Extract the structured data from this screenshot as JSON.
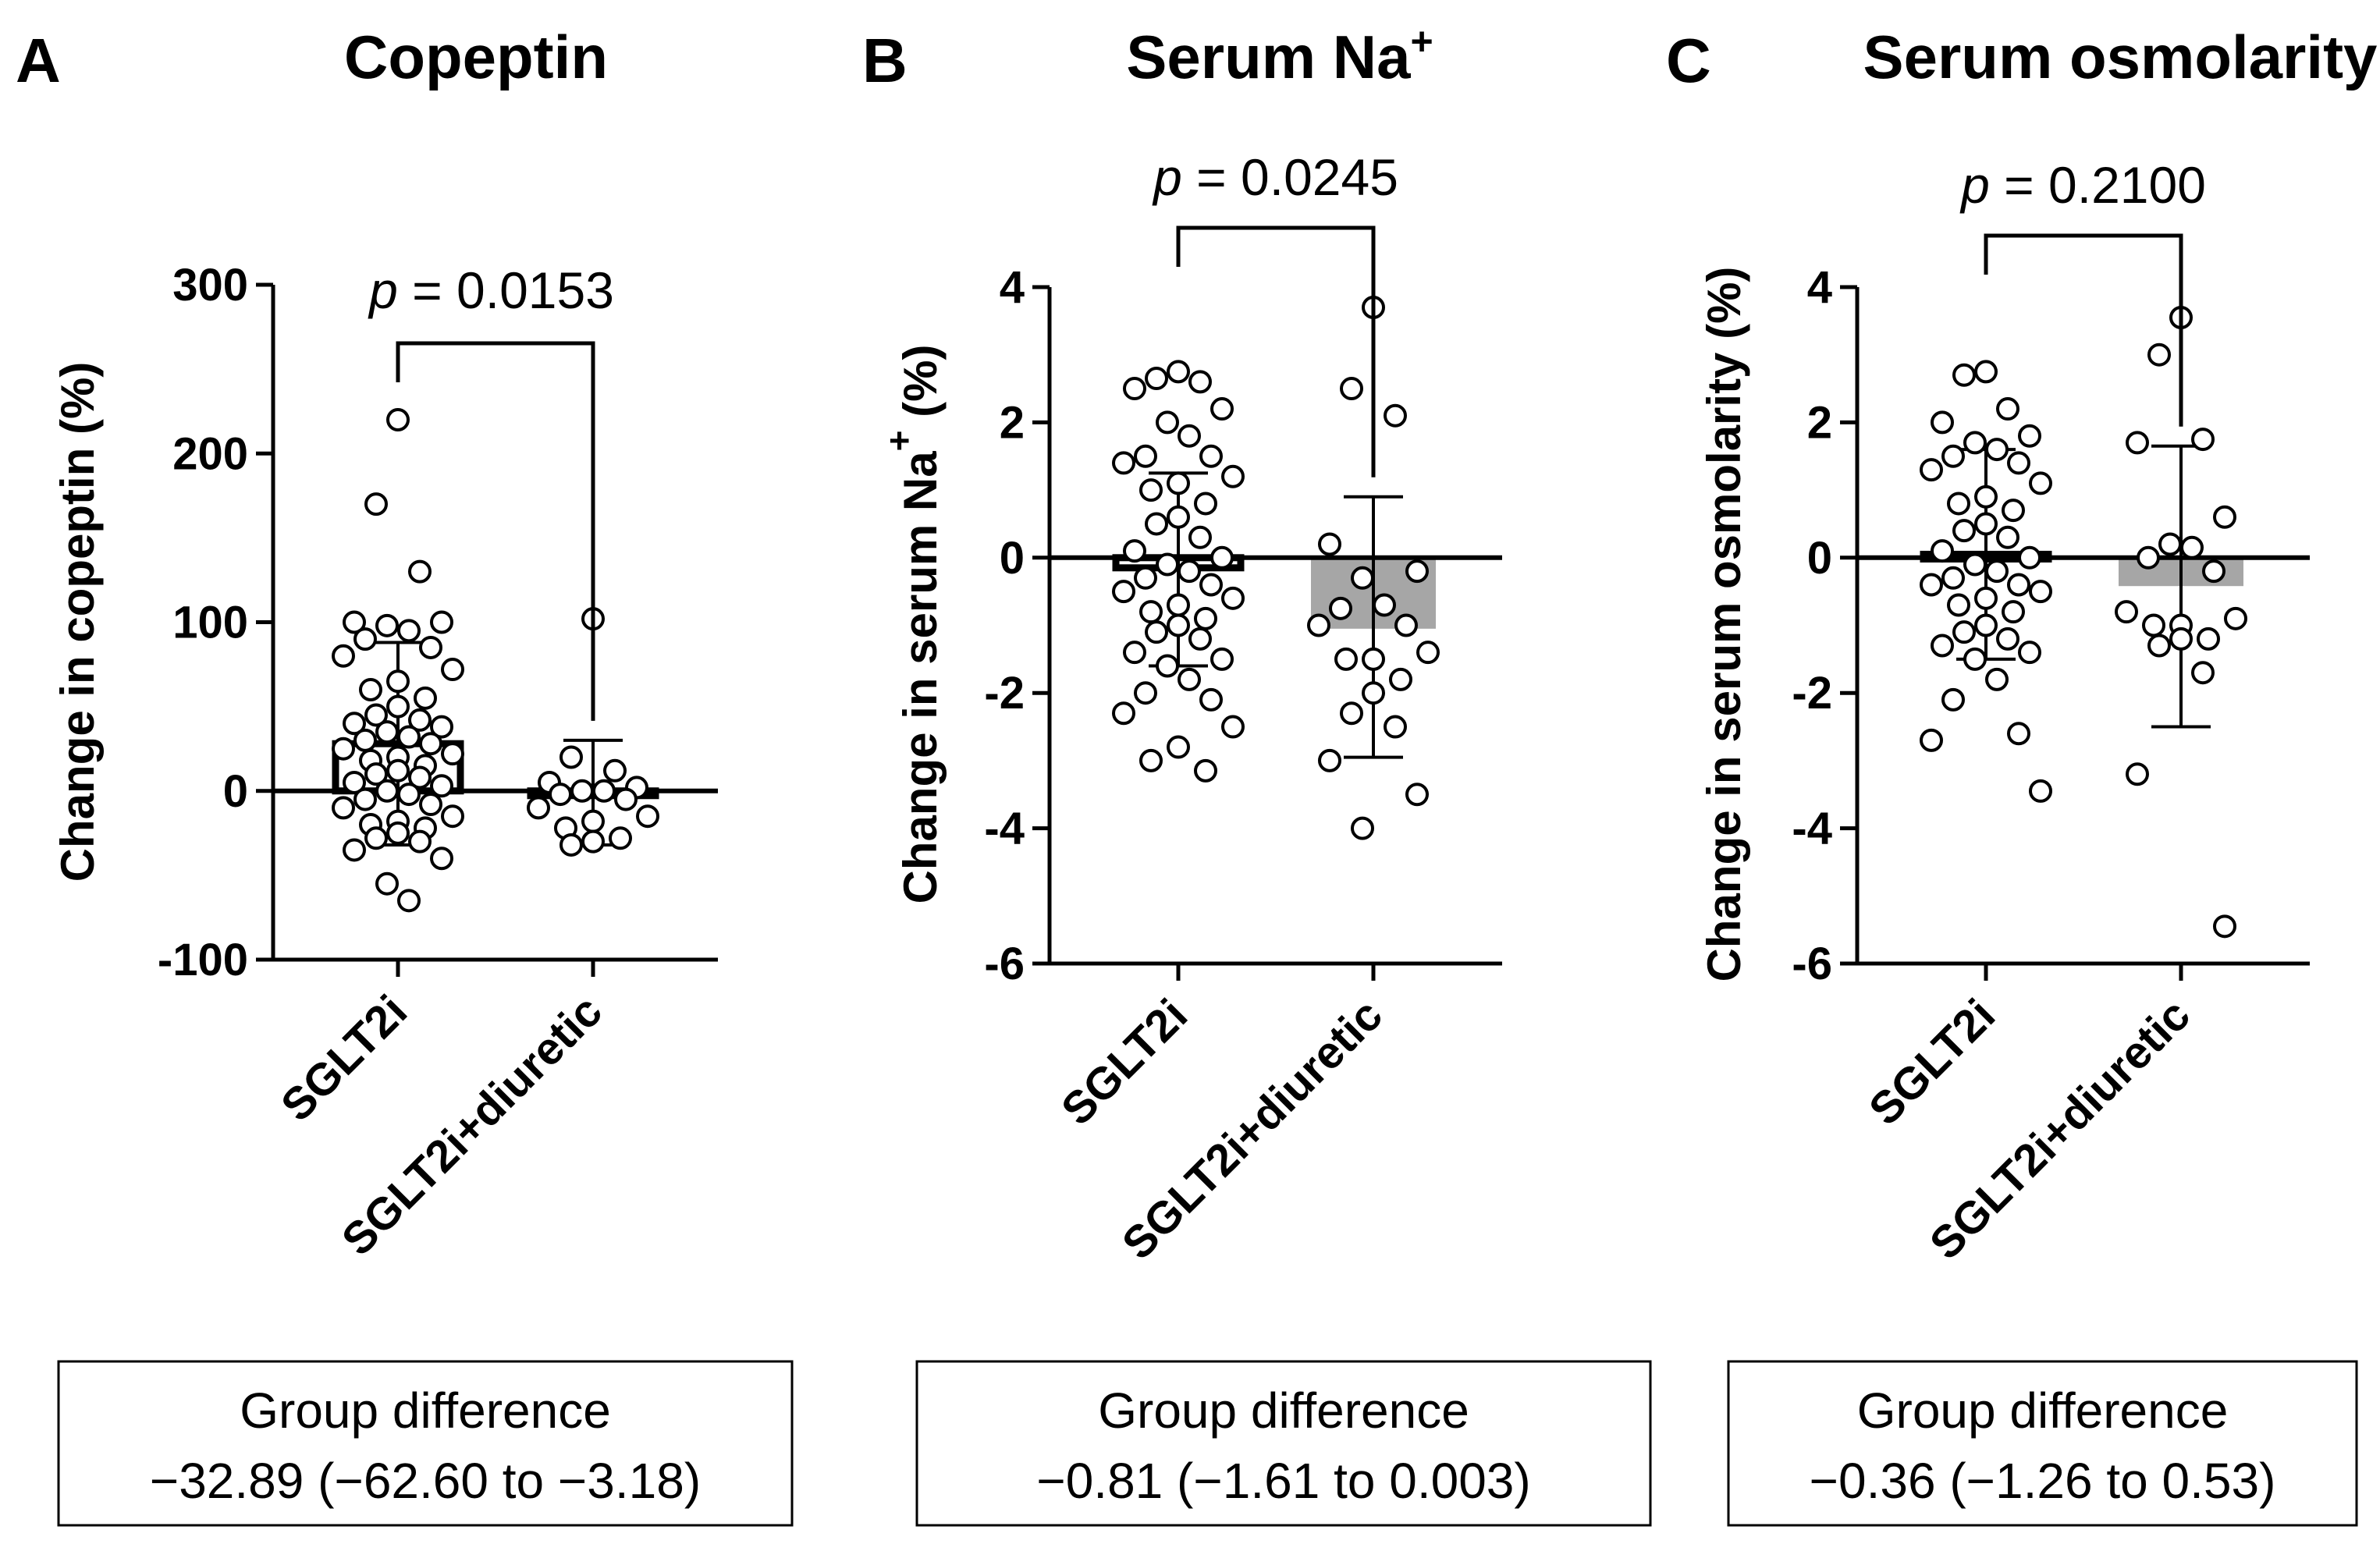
{
  "chart_data": [
    {
      "type": "scatter",
      "panel_letter": "A",
      "title": "Copeptin",
      "title_sup": "",
      "ylabel": "Change in copeptin (%)",
      "ylabel_sup": "",
      "ylim": [
        -100,
        300
      ],
      "yticks": [
        "300",
        "200",
        "100",
        "0",
        "-100"
      ],
      "ytick_values": [
        300,
        200,
        100,
        0,
        -100
      ],
      "categories": [
        "SGLT2i",
        "SGLT2i+diuretic"
      ],
      "p_label": "p",
      "p_value": " = 0.0153",
      "series": [
        {
          "name": "SGLT2i",
          "mean": 28,
          "sd_low": -32,
          "sd_high": 88,
          "bar_fill": "#ffffff",
          "values": [
            220,
            170,
            130,
            100,
            100,
            98,
            95,
            90,
            85,
            80,
            72,
            65,
            60,
            55,
            50,
            45,
            42,
            40,
            38,
            35,
            32,
            30,
            28,
            25,
            22,
            20,
            18,
            15,
            12,
            10,
            8,
            5,
            3,
            0,
            -2,
            -5,
            -8,
            -10,
            -15,
            -18,
            -20,
            -22,
            -25,
            -28,
            -30,
            -35,
            -40,
            -55,
            -65
          ]
        },
        {
          "name": "SGLT2i+diuretic",
          "mean": -2,
          "sd_low": -32,
          "sd_high": 30,
          "bar_fill": "#ffffff",
          "values": [
            102,
            20,
            12,
            5,
            2,
            0,
            0,
            -2,
            -5,
            -10,
            -15,
            -18,
            -22,
            -28,
            -30,
            -32
          ]
        }
      ],
      "group_difference_label": "Group difference",
      "group_difference_value": "−32.89 (−62.60 to −3.18)"
    },
    {
      "type": "scatter",
      "panel_letter": "B",
      "title": "Serum Na",
      "title_sup": "+",
      "ylabel": "Change in serum Na",
      "ylabel_sup": "+",
      "ylabel_suffix": " (%)",
      "ylim": [
        -6,
        4
      ],
      "yticks": [
        "4",
        "2",
        "0",
        "-2",
        "-4",
        "-6"
      ],
      "ytick_values": [
        4,
        2,
        0,
        -2,
        -4,
        -6
      ],
      "categories": [
        "SGLT2i",
        "SGLT2i+diuretic"
      ],
      "p_label": "p",
      "p_value": " = 0.0245",
      "series": [
        {
          "name": "SGLT2i",
          "mean": -0.15,
          "sd_low": -1.6,
          "sd_high": 1.25,
          "bar_fill": "#ffffff",
          "values": [
            2.75,
            2.65,
            2.6,
            2.5,
            2.2,
            2.0,
            1.8,
            1.5,
            1.5,
            1.4,
            1.2,
            1.1,
            1.0,
            0.8,
            0.6,
            0.5,
            0.3,
            0.1,
            0.0,
            -0.1,
            -0.2,
            -0.3,
            -0.4,
            -0.5,
            -0.6,
            -0.7,
            -0.8,
            -0.9,
            -1.0,
            -1.1,
            -1.2,
            -1.4,
            -1.5,
            -1.6,
            -1.8,
            -2.0,
            -2.1,
            -2.3,
            -2.5,
            -2.8,
            -3.0,
            -3.15
          ]
        },
        {
          "name": "SGLT2i+diuretic",
          "mean": -1.05,
          "sd_low": -2.95,
          "sd_high": 0.9,
          "bar_fill": "#a6a6a6",
          "values": [
            3.7,
            2.5,
            2.1,
            0.2,
            -0.2,
            -0.3,
            -0.7,
            -0.75,
            -1.0,
            -1.0,
            -1.4,
            -1.5,
            -1.5,
            -1.8,
            -2.0,
            -2.3,
            -2.5,
            -3.0,
            -3.5,
            -4.0
          ]
        }
      ],
      "group_difference_label": "Group difference",
      "group_difference_value": "−0.81 (−1.61 to 0.003)"
    },
    {
      "type": "scatter",
      "panel_letter": "C",
      "title": "Serum osmolarity",
      "title_sup": "",
      "ylabel": "Change in serum osmolarity (%)",
      "ylabel_sup": "",
      "ylim": [
        -6,
        4
      ],
      "yticks": [
        "4",
        "2",
        "0",
        "-2",
        "-4",
        "-6"
      ],
      "ytick_values": [
        4,
        2,
        0,
        -2,
        -4,
        -6
      ],
      "categories": [
        "SGLT2i",
        "SGLT2i+diuretic"
      ],
      "p_label": "p",
      "p_value": " = 0.2100",
      "series": [
        {
          "name": "SGLT2i",
          "mean": 0.05,
          "sd_low": -1.5,
          "sd_high": 1.6,
          "bar_fill": "#ffffff",
          "values": [
            2.75,
            2.7,
            2.2,
            2.0,
            1.8,
            1.7,
            1.6,
            1.5,
            1.4,
            1.3,
            1.1,
            0.9,
            0.8,
            0.7,
            0.5,
            0.4,
            0.3,
            0.1,
            0.0,
            -0.1,
            -0.2,
            -0.3,
            -0.4,
            -0.4,
            -0.5,
            -0.6,
            -0.7,
            -0.8,
            -1.0,
            -1.1,
            -1.2,
            -1.3,
            -1.4,
            -1.5,
            -1.8,
            -2.1,
            -2.6,
            -2.7,
            -3.45
          ]
        },
        {
          "name": "SGLT2i+diuretic",
          "mean": -0.42,
          "sd_low": -2.5,
          "sd_high": 1.65,
          "bar_fill": "#a6a6a6",
          "values": [
            3.55,
            3.0,
            1.75,
            1.7,
            0.6,
            0.2,
            0.15,
            0.0,
            -0.2,
            -0.8,
            -0.9,
            -1.0,
            -1.0,
            -1.2,
            -1.2,
            -1.3,
            -1.7,
            -3.2,
            -5.45
          ]
        }
      ],
      "group_difference_label": "Group difference",
      "group_difference_value": "−0.36 (−1.26 to 0.53)"
    }
  ]
}
